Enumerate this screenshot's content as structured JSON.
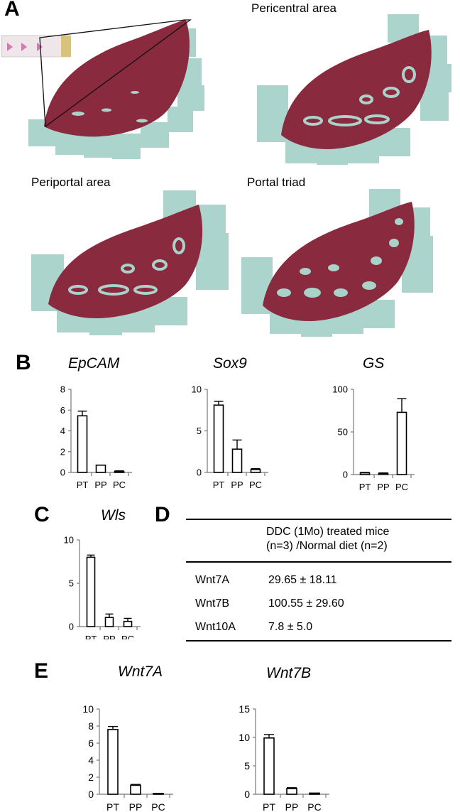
{
  "panels": {
    "a": "A",
    "b": "B",
    "c": "C",
    "d": "D",
    "e": "E"
  },
  "images": {
    "top_right_label": "Pericentral area",
    "bottom_left_label": "Periportal area",
    "bottom_right_label": "Portal triad",
    "tissue_color": "#8a2a3f",
    "tile_color": "#9ccdc4",
    "lumen_color": "#a9d2c8"
  },
  "table": {
    "header_line1": "DDC (1Mo) treated mice",
    "header_line2": "(n=3) /Normal diet (n=2)",
    "rows": [
      {
        "gene": "Wnt7A",
        "value": "29.65 ± 18.11"
      },
      {
        "gene": "Wnt7B",
        "value": "100.55 ± 29.60"
      },
      {
        "gene": "Wnt10A",
        "value": "7.8 ± 5.0"
      }
    ]
  },
  "chart_data": [
    {
      "type": "bar",
      "title": "EpCAM",
      "categories": [
        "PT",
        "PP",
        "PC"
      ],
      "values": [
        5.45,
        0.7,
        0.1
      ],
      "errors": [
        0.45,
        0,
        0.05
      ],
      "ylim": [
        0,
        8
      ],
      "yticks": [
        0,
        2,
        4,
        6,
        8
      ]
    },
    {
      "type": "bar",
      "title": "Sox9",
      "categories": [
        "PT",
        "PP",
        "PC"
      ],
      "values": [
        8.1,
        2.8,
        0.35
      ],
      "errors": [
        0.45,
        1.1,
        0.1
      ],
      "ylim": [
        0,
        10
      ],
      "yticks": [
        0,
        5,
        10
      ]
    },
    {
      "type": "bar",
      "title": "GS",
      "categories": [
        "PT",
        "PP",
        "PC"
      ],
      "values": [
        2,
        1.5,
        73
      ],
      "errors": [
        0.5,
        0.4,
        16
      ],
      "ylim": [
        0,
        100
      ],
      "yticks": [
        0,
        50,
        100
      ]
    },
    {
      "type": "bar",
      "title": "Wls",
      "categories": [
        "PT",
        "PP",
        "PC"
      ],
      "values": [
        8,
        1.05,
        0.6
      ],
      "errors": [
        0.25,
        0.4,
        0.35
      ],
      "ylim": [
        0,
        10
      ],
      "yticks": [
        0,
        5,
        10
      ]
    },
    {
      "type": "bar",
      "title": "Wnt7A",
      "categories": [
        "PT",
        "PP",
        "PC"
      ],
      "values": [
        7.6,
        1.05,
        0.1
      ],
      "errors": [
        0.35,
        0.1,
        0
      ],
      "ylim": [
        0,
        10
      ],
      "yticks": [
        0,
        2,
        4,
        6,
        8,
        10
      ]
    },
    {
      "type": "bar",
      "title": "Wnt7B",
      "categories": [
        "PT",
        "PP",
        "PC"
      ],
      "values": [
        9.9,
        1.0,
        0.2
      ],
      "errors": [
        0.6,
        0.15,
        0
      ],
      "ylim": [
        0,
        15
      ],
      "yticks": [
        0,
        5,
        10,
        15
      ]
    }
  ]
}
